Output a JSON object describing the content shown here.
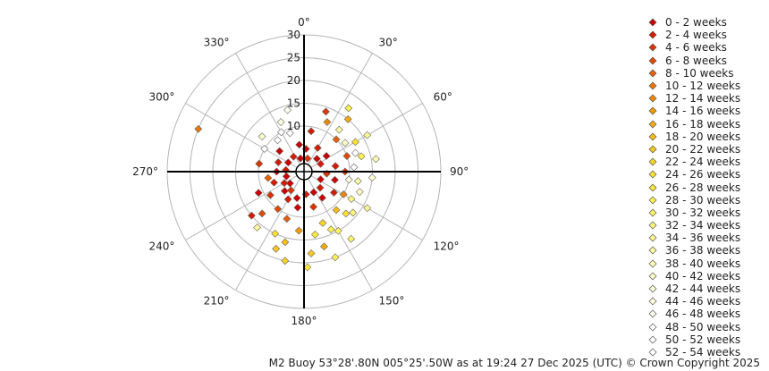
{
  "chart_data": {
    "type": "scatter",
    "subtype": "polar",
    "title": "",
    "radial_axis": {
      "ticks": [
        10,
        15,
        20,
        25,
        30
      ],
      "max": 30
    },
    "angular_axis": {
      "ticks": [
        "0°",
        "30°",
        "60°",
        "90°",
        "120°",
        "150°",
        "180°",
        "210°",
        "240°",
        "270°",
        "300°",
        "330°"
      ],
      "direction": "clockwise",
      "zero": "north"
    },
    "grid": true,
    "legend_position": "right",
    "marker": "diamond",
    "series": [
      {
        "name": "0 - 2 weeks",
        "color": "#cc0000"
      },
      {
        "name": "2 - 4 weeks",
        "color": "#d61a00"
      },
      {
        "name": "4 - 6 weeks",
        "color": "#dc3300"
      },
      {
        "name": "6 - 8 weeks",
        "color": "#e24a00"
      },
      {
        "name": "8 - 10 weeks",
        "color": "#e85e00"
      },
      {
        "name": "10 - 12 weeks",
        "color": "#ee7400"
      },
      {
        "name": "12 - 14 weeks",
        "color": "#f08600"
      },
      {
        "name": "14 - 16 weeks",
        "color": "#f49a00"
      },
      {
        "name": "16 - 18 weeks",
        "color": "#f6ac0a"
      },
      {
        "name": "18 - 20 weeks",
        "color": "#f8bc14"
      },
      {
        "name": "20 - 22 weeks",
        "color": "#fac81e"
      },
      {
        "name": "22 - 24 weeks",
        "color": "#fcd428"
      },
      {
        "name": "24 - 26 weeks",
        "color": "#fde030"
      },
      {
        "name": "26 - 28 weeks",
        "color": "#feea3a"
      },
      {
        "name": "28 - 30 weeks",
        "color": "#fff050"
      },
      {
        "name": "30 - 32 weeks",
        "color": "#fff366"
      },
      {
        "name": "32 - 34 weeks",
        "color": "#fff57a"
      },
      {
        "name": "34 - 36 weeks",
        "color": "#fff78e"
      },
      {
        "name": "36 - 38 weeks",
        "color": "#fff9a2"
      },
      {
        "name": "38 - 40 weeks",
        "color": "#fffab4"
      },
      {
        "name": "40 - 42 weeks",
        "color": "#fffbc4"
      },
      {
        "name": "42 - 44 weeks",
        "color": "#fffcd2"
      },
      {
        "name": "44 - 46 weeks",
        "color": "#fffde0"
      },
      {
        "name": "46 - 48 weeks",
        "color": "#fffeec"
      },
      {
        "name": "48 - 50 weeks",
        "color": "#ffffff"
      },
      {
        "name": "50 - 52 weeks",
        "color": "#ffffff"
      },
      {
        "name": "52 - 54 weeks",
        "color": "#ffffff"
      }
    ],
    "points": [
      [
        292,
        25,
        5
      ],
      [
        20,
        14,
        2
      ],
      [
        40,
        15,
        8
      ],
      [
        35,
        17,
        14
      ],
      [
        60,
        13,
        12
      ],
      [
        75,
        13,
        14
      ],
      [
        100,
        12,
        18
      ],
      [
        110,
        13,
        20
      ],
      [
        130,
        14,
        16
      ],
      [
        150,
        15,
        15
      ],
      [
        165,
        17,
        8
      ],
      [
        175,
        18,
        10
      ],
      [
        195,
        16,
        9
      ],
      [
        205,
        15,
        12
      ],
      [
        225,
        13,
        3
      ],
      [
        230,
        15,
        1
      ],
      [
        245,
        11,
        0
      ],
      [
        260,
        8,
        4
      ],
      [
        280,
        10,
        2
      ],
      [
        300,
        10,
        26
      ],
      [
        320,
        9,
        25
      ],
      [
        330,
        10,
        24
      ],
      [
        340,
        9,
        26
      ],
      [
        10,
        9,
        1
      ],
      [
        25,
        12,
        6
      ],
      [
        45,
        10,
        4
      ],
      [
        70,
        10,
        3
      ],
      [
        90,
        9,
        2
      ],
      [
        120,
        10,
        6
      ],
      [
        140,
        11,
        9
      ],
      [
        160,
        12,
        11
      ],
      [
        170,
        14,
        13
      ],
      [
        185,
        13,
        7
      ],
      [
        200,
        11,
        4
      ],
      [
        215,
        10,
        3
      ],
      [
        235,
        9,
        2
      ],
      [
        250,
        7,
        1
      ],
      [
        270,
        6,
        0
      ],
      [
        290,
        6,
        1
      ],
      [
        310,
        7,
        0
      ],
      [
        350,
        6,
        0
      ],
      [
        5,
        5,
        0
      ],
      [
        30,
        6,
        1
      ],
      [
        55,
        6,
        0
      ],
      [
        80,
        7,
        1
      ],
      [
        105,
        7,
        0
      ],
      [
        125,
        8,
        1
      ],
      [
        145,
        7,
        0
      ],
      [
        165,
        8,
        2
      ],
      [
        190,
        8,
        0
      ],
      [
        210,
        7,
        1
      ],
      [
        225,
        6,
        0
      ],
      [
        240,
        5,
        1
      ],
      [
        255,
        4,
        0
      ],
      [
        275,
        4,
        1
      ],
      [
        300,
        4,
        0
      ],
      [
        325,
        4,
        1
      ],
      [
        345,
        3,
        0
      ],
      [
        15,
        3,
        2
      ],
      [
        45,
        4,
        0
      ],
      [
        65,
        4,
        1
      ],
      [
        95,
        5,
        2
      ],
      [
        115,
        4,
        0
      ],
      [
        135,
        5,
        1
      ],
      [
        155,
        5,
        0
      ],
      [
        175,
        5,
        1
      ],
      [
        195,
        6,
        0
      ],
      [
        215,
        5,
        2
      ],
      [
        230,
        4,
        0
      ],
      [
        335,
        12,
        22
      ],
      [
        345,
        14,
        23
      ],
      [
        310,
        12,
        20
      ],
      [
        60,
        16,
        17
      ],
      [
        80,
        16,
        19
      ],
      [
        95,
        15,
        21
      ],
      [
        120,
        16,
        17
      ],
      [
        145,
        18,
        15
      ],
      [
        160,
        20,
        14
      ],
      [
        178,
        21,
        13
      ],
      [
        192,
        20,
        11
      ],
      [
        200,
        18,
        10
      ],
      [
        220,
        16,
        18
      ],
      [
        120,
        12,
        16
      ],
      [
        135,
        13,
        12
      ],
      [
        155,
        14,
        14
      ],
      [
        100,
        10,
        22
      ],
      [
        85,
        11,
        24
      ],
      [
        70,
        12,
        25
      ],
      [
        55,
        11,
        20
      ],
      [
        40,
        12,
        18
      ]
    ]
  },
  "footer": "M2 Buoy 53°28'.80N 005°25'.50W as at 19:24 27 Dec 2025 (UTC) © Crown Copyright 2025"
}
